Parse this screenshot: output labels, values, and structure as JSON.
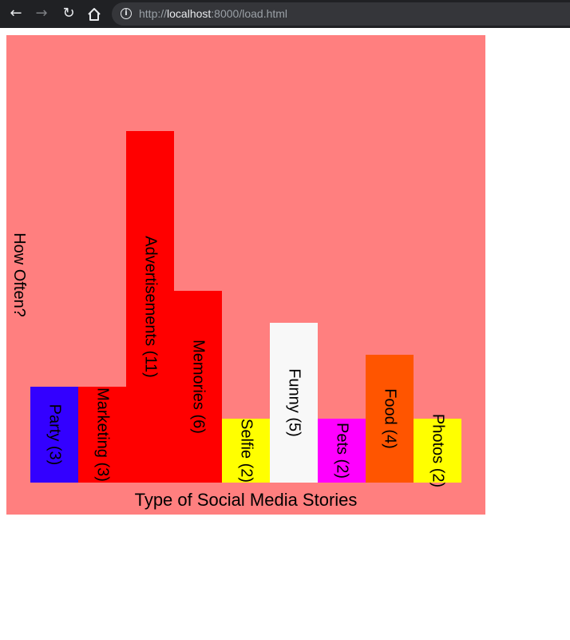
{
  "browser": {
    "url_scheme": "http://",
    "url_host": "localhost",
    "url_path": ":8000/load.html"
  },
  "chart_data": {
    "type": "bar",
    "background": "#ff7f7f",
    "xlabel": "Type of Social Media Stories",
    "ylabel": "How Often?",
    "ylim": [
      0,
      14
    ],
    "categories": [
      "Party",
      "Marketing",
      "Advertisements",
      "Memories",
      "Selfie",
      "Funny",
      "Pets",
      "Food",
      "Photos"
    ],
    "values": [
      3,
      3,
      11,
      6,
      2,
      5,
      2,
      4,
      2
    ],
    "bar_labels": [
      "Party (3)",
      "Marketing (3)",
      "Advertisements (11)",
      "Memories (6)",
      "Selfie (2)",
      "Funny (5)",
      "Pets (2)",
      "Food (4)",
      "Photos (2)"
    ],
    "colors": [
      "#3300ff",
      "#ff0000",
      "#ff0000",
      "#ff0000",
      "#ffff00",
      "#f8f8f8",
      "#ff00ff",
      "#ff5500",
      "#ffff00"
    ]
  }
}
